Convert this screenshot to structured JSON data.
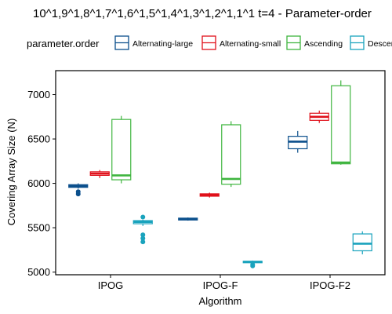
{
  "title": "10^1,9^1,8^1,7^1,6^1,5^1,4^1,3^1,2^1,1^1 t=4 - Parameter-order",
  "legend": {
    "title": "parameter.order",
    "items": [
      {
        "label": "Alternating-large",
        "color": "#0b4f8c"
      },
      {
        "label": "Alternating-small",
        "color": "#e0111b"
      },
      {
        "label": "Ascending",
        "color": "#3fb53f"
      },
      {
        "label": "Descending",
        "color": "#1aa3bd"
      }
    ]
  },
  "chart_data": {
    "type": "box",
    "title": "10^1,9^1,8^1,7^1,6^1,5^1,4^1,3^1,2^1,1^1 t=4 - Parameter-order",
    "xlabel": "Algorithm",
    "ylabel": "Covering Array Size (N)",
    "categories": [
      "IPOG",
      "IPOG-F",
      "IPOG-F2"
    ],
    "yticks": [
      5000,
      5500,
      6000,
      6500,
      7000
    ],
    "ylim": [
      4970,
      7270
    ],
    "legend_position": "top",
    "grid": false,
    "series": [
      {
        "name": "Alternating-large",
        "color": "#0b4f8c",
        "boxes": [
          {
            "min": 5940,
            "q1": 5955,
            "median": 5970,
            "q3": 5985,
            "max": 6000,
            "outliers": [
              5880,
              5905
            ]
          },
          {
            "min": 5580,
            "q1": 5587,
            "median": 5597,
            "q3": 5608,
            "max": 5615,
            "outliers": []
          },
          {
            "min": 6345,
            "q1": 6390,
            "median": 6470,
            "q3": 6530,
            "max": 6590,
            "outliers": []
          }
        ]
      },
      {
        "name": "Alternating-small",
        "color": "#e0111b",
        "boxes": [
          {
            "min": 6060,
            "q1": 6090,
            "median": 6110,
            "q3": 6130,
            "max": 6150,
            "outliers": []
          },
          {
            "min": 5840,
            "q1": 5855,
            "median": 5868,
            "q3": 5882,
            "max": 5895,
            "outliers": []
          },
          {
            "min": 6680,
            "q1": 6710,
            "median": 6750,
            "q3": 6790,
            "max": 6820,
            "outliers": []
          }
        ]
      },
      {
        "name": "Ascending",
        "color": "#3fb53f",
        "boxes": [
          {
            "min": 6000,
            "q1": 6040,
            "median": 6090,
            "q3": 6720,
            "max": 6760,
            "outliers": []
          },
          {
            "min": 5960,
            "q1": 5990,
            "median": 6050,
            "q3": 6660,
            "max": 6700,
            "outliers": []
          },
          {
            "min": 6210,
            "q1": 6220,
            "median": 6235,
            "q3": 7100,
            "max": 7160,
            "outliers": []
          }
        ]
      },
      {
        "name": "Descending",
        "color": "#1aa3bd",
        "boxes": [
          {
            "min": 5520,
            "q1": 5545,
            "median": 5565,
            "q3": 5580,
            "max": 5590,
            "outliers": [
              5620,
              5420,
              5380,
              5340
            ]
          },
          {
            "min": 5095,
            "q1": 5105,
            "median": 5115,
            "q3": 5122,
            "max": 5130,
            "outliers": [
              5070,
              5085
            ]
          },
          {
            "min": 5200,
            "q1": 5240,
            "median": 5320,
            "q3": 5430,
            "max": 5460,
            "outliers": []
          }
        ]
      }
    ]
  }
}
